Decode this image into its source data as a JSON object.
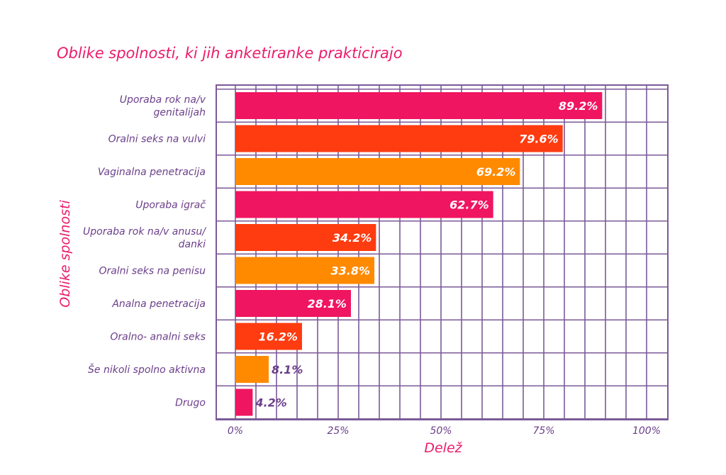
{
  "chart_data": {
    "type": "bar",
    "orientation": "horizontal",
    "title": "Oblike spolnosti, ki jih anketiranke prakticirajo",
    "xlabel": "Delež",
    "ylabel": "Oblike spolnosti",
    "xlim": [
      0,
      100
    ],
    "ticks": [
      {
        "value": 0,
        "label": "0%"
      },
      {
        "value": 25,
        "label": "25%"
      },
      {
        "value": 50,
        "label": "50%"
      },
      {
        "value": 75,
        "label": "75%"
      },
      {
        "value": 100,
        "label": "100%"
      }
    ],
    "grid": true,
    "bars": [
      {
        "label": [
          "Uporaba rok na/v",
          "genitalijah"
        ],
        "value": 89.2,
        "value_label": "89.2%",
        "color": "#f01560",
        "label_color": "#ffffff"
      },
      {
        "label": [
          "Oralni seks na vulvi"
        ],
        "value": 79.6,
        "value_label": "79.6%",
        "color": "#ff3b10",
        "label_color": "#ffffff"
      },
      {
        "label": [
          "Vaginalna penetracija"
        ],
        "value": 69.2,
        "value_label": "69.2%",
        "color": "#ff8a00",
        "label_color": "#ffffff"
      },
      {
        "label": [
          "Uporaba igrač"
        ],
        "value": 62.7,
        "value_label": "62.7%",
        "color": "#f01560",
        "label_color": "#ffffff"
      },
      {
        "label": [
          "Uporaba rok na/v anusu/",
          "danki"
        ],
        "value": 34.2,
        "value_label": "34.2%",
        "color": "#ff3b10",
        "label_color": "#ffffff"
      },
      {
        "label": [
          "Oralni seks na penisu"
        ],
        "value": 33.8,
        "value_label": "33.8%",
        "color": "#ff8a00",
        "label_color": "#ffffff"
      },
      {
        "label": [
          "Analna penetracija"
        ],
        "value": 28.1,
        "value_label": "28.1%",
        "color": "#f01560",
        "label_color": "#ffffff"
      },
      {
        "label": [
          "Oralno- analni seks"
        ],
        "value": 16.2,
        "value_label": "16.2%",
        "color": "#ff3b10",
        "label_color": "#ffffff"
      },
      {
        "label": [
          "Še nikoli spolno aktivna"
        ],
        "value": 8.1,
        "value_label": "8.1%",
        "color": "#ff8a00",
        "label_color": "#6b3e8a"
      },
      {
        "label": [
          "Drugo"
        ],
        "value": 4.2,
        "value_label": "4.2%",
        "color": "#f01560",
        "label_color": "#6b3e8a"
      }
    ]
  }
}
